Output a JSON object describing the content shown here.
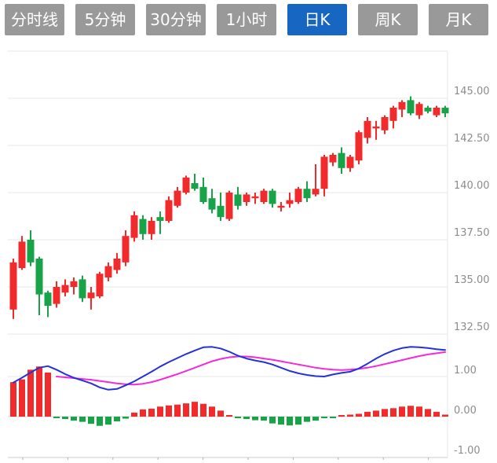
{
  "tabs": [
    {
      "label": "分时线",
      "active": false
    },
    {
      "label": "5分钟",
      "active": false
    },
    {
      "label": "30分钟",
      "active": false
    },
    {
      "label": "1小时",
      "active": false
    },
    {
      "label": "日K",
      "active": true
    },
    {
      "label": "周K",
      "active": false
    },
    {
      "label": "月K",
      "active": false
    }
  ],
  "colors": {
    "tab_bg": "#999999",
    "tab_active_bg": "#1766c2",
    "tab_text": "#ffffff",
    "candle_up": "#f12b2c",
    "candle_down": "#18a348",
    "dif_line": "#2531d9",
    "dea_line": "#f42ad9",
    "grid_line": "#e7e7e7",
    "zero_line": "#cfcfcf",
    "axis_line": "#cccccc",
    "axis_tick": "#a9b2c6",
    "axis_label": "#8c8c8c"
  },
  "chart_data": [
    {
      "type": "candlestick",
      "title": "",
      "legend": [],
      "grid": true,
      "y_axis_side": "right",
      "yticks": [
        {
          "price": 147.5,
          "label": ""
        },
        {
          "price": 145.0,
          "label": "145.00"
        },
        {
          "price": 142.5,
          "label": "142.50"
        },
        {
          "price": 140.0,
          "label": "140.00"
        },
        {
          "price": 137.5,
          "label": "137.50"
        },
        {
          "price": 135.0,
          "label": "135.00"
        },
        {
          "price": 132.5,
          "label": "132.50"
        }
      ],
      "ylim": [
        131.0,
        147.5
      ],
      "candles_ohlc": [
        [
          133.8,
          136.5,
          133.3,
          136.3
        ],
        [
          136.0,
          137.7,
          135.9,
          137.4
        ],
        [
          137.5,
          138.0,
          136.1,
          136.3
        ],
        [
          136.5,
          136.6,
          133.5,
          134.6
        ],
        [
          134.7,
          134.8,
          133.4,
          134.0
        ],
        [
          134.1,
          135.3,
          133.9,
          135.0
        ],
        [
          134.7,
          135.4,
          134.5,
          135.1
        ],
        [
          135.0,
          135.5,
          134.6,
          135.3
        ],
        [
          135.4,
          135.6,
          134.2,
          134.4
        ],
        [
          134.4,
          135.0,
          133.8,
          134.7
        ],
        [
          134.5,
          135.8,
          134.4,
          135.7
        ],
        [
          135.5,
          136.3,
          135.3,
          136.1
        ],
        [
          135.9,
          136.8,
          135.7,
          136.5
        ],
        [
          136.3,
          138.0,
          136.1,
          137.7
        ],
        [
          137.6,
          139.0,
          137.4,
          138.8
        ],
        [
          138.6,
          138.8,
          137.5,
          137.8
        ],
        [
          137.8,
          138.7,
          137.5,
          138.5
        ],
        [
          138.7,
          139.0,
          137.8,
          138.5
        ],
        [
          138.5,
          139.8,
          138.4,
          139.6
        ],
        [
          139.3,
          140.3,
          139.2,
          140.1
        ],
        [
          140.0,
          140.9,
          139.9,
          140.8
        ],
        [
          140.5,
          141.0,
          140.1,
          140.2
        ],
        [
          140.3,
          140.8,
          139.4,
          139.5
        ],
        [
          139.7,
          140.2,
          138.9,
          139.1
        ],
        [
          139.3,
          140.0,
          138.5,
          138.7
        ],
        [
          138.6,
          140.1,
          138.5,
          140.0
        ],
        [
          139.9,
          140.3,
          139.1,
          139.3
        ],
        [
          139.5,
          140.0,
          139.3,
          139.9
        ],
        [
          139.7,
          140.0,
          139.4,
          139.8
        ],
        [
          139.5,
          140.2,
          139.4,
          140.1
        ],
        [
          140.1,
          140.2,
          139.2,
          139.4
        ],
        [
          139.2,
          139.5,
          139.0,
          139.3
        ],
        [
          139.4,
          140.0,
          139.2,
          139.6
        ],
        [
          139.5,
          140.3,
          139.4,
          140.2
        ],
        [
          140.2,
          140.6,
          139.5,
          139.7
        ],
        [
          139.9,
          141.5,
          139.8,
          140.2
        ],
        [
          140.2,
          142.0,
          139.8,
          141.9
        ],
        [
          141.6,
          142.1,
          141.4,
          142.0
        ],
        [
          142.1,
          142.4,
          141.0,
          141.3
        ],
        [
          141.3,
          142.0,
          141.1,
          141.9
        ],
        [
          141.7,
          143.3,
          141.5,
          143.2
        ],
        [
          142.9,
          144.0,
          142.6,
          143.8
        ],
        [
          143.4,
          143.8,
          142.8,
          143.5
        ],
        [
          143.3,
          144.1,
          143.1,
          144.0
        ],
        [
          143.8,
          144.6,
          143.4,
          144.5
        ],
        [
          144.4,
          144.9,
          144.0,
          144.8
        ],
        [
          144.9,
          145.1,
          144.1,
          144.2
        ],
        [
          144.1,
          144.8,
          143.9,
          144.7
        ],
        [
          144.5,
          144.6,
          144.2,
          144.3
        ],
        [
          144.1,
          144.6,
          144.0,
          144.5
        ],
        [
          144.5,
          144.6,
          144.0,
          144.2
        ]
      ]
    },
    {
      "type": "macd",
      "title": "",
      "grid": true,
      "y_axis_side": "right",
      "yticks": [
        {
          "value": 1.0,
          "label": "1.00"
        },
        {
          "value": 0.0,
          "label": "0.00"
        },
        {
          "value": -1.0,
          "label": "-1.00"
        }
      ],
      "ylim": [
        -1.1,
        2.0
      ],
      "histogram": [
        0.86,
        0.93,
        1.17,
        1.25,
        1.1,
        -0.03,
        -0.06,
        -0.1,
        -0.13,
        -0.18,
        -0.23,
        -0.2,
        -0.12,
        -0.05,
        0.1,
        0.18,
        0.2,
        0.25,
        0.28,
        0.3,
        0.33,
        0.37,
        0.32,
        0.25,
        0.15,
        0.02,
        -0.03,
        -0.06,
        -0.09,
        -0.1,
        -0.17,
        -0.2,
        -0.22,
        -0.2,
        -0.13,
        -0.1,
        -0.04,
        -0.04,
        0.03,
        0.05,
        0.07,
        0.12,
        0.15,
        0.19,
        0.21,
        0.25,
        0.27,
        0.25,
        0.19,
        0.12,
        0.05
      ],
      "series": [
        {
          "name": "DIF",
          "values": [
            0.85,
            0.97,
            1.1,
            1.22,
            1.26,
            1.17,
            1.06,
            0.97,
            0.9,
            0.83,
            0.73,
            0.67,
            0.69,
            0.78,
            0.88,
            1.0,
            1.12,
            1.25,
            1.36,
            1.46,
            1.56,
            1.65,
            1.73,
            1.74,
            1.7,
            1.62,
            1.52,
            1.45,
            1.4,
            1.36,
            1.3,
            1.22,
            1.14,
            1.08,
            1.04,
            1.01,
            1.0,
            1.05,
            1.09,
            1.12,
            1.2,
            1.32,
            1.45,
            1.56,
            1.65,
            1.71,
            1.74,
            1.73,
            1.71,
            1.68,
            1.66
          ]
        },
        {
          "name": "DEA",
          "values": [
            null,
            null,
            null,
            null,
            null,
            1.0,
            0.98,
            0.96,
            0.94,
            0.92,
            0.89,
            0.86,
            0.83,
            0.81,
            0.8,
            0.82,
            0.86,
            0.92,
            0.99,
            1.06,
            1.14,
            1.22,
            1.3,
            1.38,
            1.44,
            1.48,
            1.5,
            1.5,
            1.48,
            1.45,
            1.42,
            1.38,
            1.34,
            1.3,
            1.26,
            1.22,
            1.19,
            1.17,
            1.16,
            1.17,
            1.19,
            1.22,
            1.26,
            1.31,
            1.36,
            1.41,
            1.46,
            1.51,
            1.55,
            1.58,
            1.61
          ]
        }
      ]
    }
  ]
}
